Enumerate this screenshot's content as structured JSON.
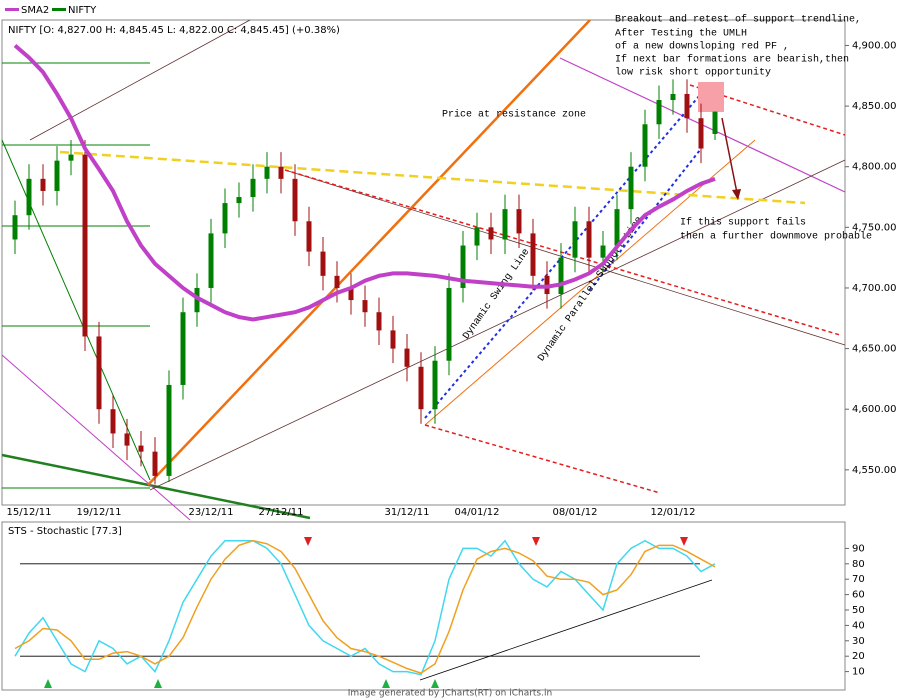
{
  "chart_data": [
    {
      "type": "candlestick",
      "name": "NIFTY",
      "color": "#008000",
      "down_color": "#a01010",
      "title": "NIFTY [O: 4,827.00  H: 4,845.45  L: 4,822.00  C: 4,845.45] (+0.38%)",
      "categories": [
        null,
        "15/12/11",
        null,
        null,
        null,
        null,
        "19/12/11",
        null,
        null,
        null,
        null,
        null,
        null,
        null,
        "23/12/11",
        null,
        null,
        null,
        null,
        "27/12/11",
        null,
        null,
        null,
        null,
        null,
        null,
        null,
        null,
        "31/12/11",
        null,
        null,
        null,
        null,
        "04/01/12",
        null,
        null,
        null,
        null,
        null,
        null,
        "08/01/12",
        null,
        null,
        null,
        null,
        null,
        null,
        "12/01/12",
        null,
        null,
        null
      ],
      "open": [
        4740,
        4760,
        4790,
        4780,
        4805,
        4810,
        4660,
        4600,
        4580,
        4570,
        4565,
        4545,
        4620,
        4680,
        4700,
        4745,
        4770,
        4775,
        4790,
        4800,
        4790,
        4755,
        4730,
        4710,
        4700,
        4690,
        4680,
        4665,
        4650,
        4635,
        4600,
        4640,
        4700,
        4735,
        4750,
        4740,
        4765,
        4745,
        4710,
        4695,
        4725,
        4755,
        4725,
        4735,
        4765,
        4800,
        4835,
        4855,
        4860,
        4840,
        4827
      ],
      "high": [
        4772,
        4802,
        4802,
        4817,
        4822,
        4822,
        4672,
        4612,
        4592,
        4582,
        4577,
        4632,
        4692,
        4712,
        4757,
        4782,
        4787,
        4802,
        4812,
        4812,
        4802,
        4767,
        4742,
        4722,
        4712,
        4702,
        4692,
        4677,
        4662,
        4647,
        4652,
        4712,
        4747,
        4762,
        4762,
        4777,
        4777,
        4757,
        4722,
        4737,
        4767,
        4767,
        4747,
        4777,
        4812,
        4847,
        4867,
        4872,
        4872,
        4852,
        4845.45
      ],
      "low": [
        4728,
        4748,
        4768,
        4768,
        4793,
        4648,
        4588,
        4568,
        4558,
        4553,
        4538,
        4540,
        4608,
        4668,
        4688,
        4733,
        4758,
        4763,
        4778,
        4778,
        4743,
        4718,
        4698,
        4688,
        4678,
        4668,
        4653,
        4638,
        4623,
        4588,
        4588,
        4628,
        4688,
        4723,
        4728,
        4728,
        4733,
        4698,
        4683,
        4683,
        4713,
        4713,
        4713,
        4723,
        4753,
        4788,
        4823,
        4843,
        4828,
        4803,
        4822
      ],
      "close": [
        4760,
        4790,
        4780,
        4805,
        4810,
        4660,
        4600,
        4580,
        4570,
        4565,
        4545,
        4620,
        4680,
        4700,
        4745,
        4770,
        4775,
        4790,
        4800,
        4790,
        4755,
        4730,
        4710,
        4700,
        4690,
        4680,
        4665,
        4650,
        4635,
        4600,
        4640,
        4700,
        4735,
        4750,
        4740,
        4765,
        4745,
        4710,
        4695,
        4725,
        4755,
        4725,
        4735,
        4765,
        4800,
        4835,
        4855,
        4860,
        4840,
        4815,
        4845.45
      ],
      "series": [
        {
          "name": "SMA2",
          "color": "#c040c8",
          "values": [
            4900,
            4890,
            4878,
            4860,
            4840,
            4815,
            4798,
            4780,
            4755,
            4735,
            4720,
            4710,
            4700,
            4692,
            4686,
            4680,
            4676,
            4674,
            4676,
            4678,
            4680,
            4684,
            4690,
            4696,
            4700,
            4706,
            4710,
            4712,
            4712,
            4711,
            4710,
            4708,
            4706,
            4705,
            4704,
            4703,
            4702,
            4701,
            4701,
            4703,
            4707,
            4712,
            4720,
            4734,
            4748,
            4760,
            4767,
            4773,
            4780,
            4786,
            4790
          ]
        }
      ],
      "ylim": [
        4521,
        4921
      ],
      "yticks": [
        {
          "value": 4550,
          "label": "4,550.00"
        },
        {
          "value": 4600,
          "label": "4,600.00"
        },
        {
          "value": 4650,
          "label": "4,650.00"
        },
        {
          "value": 4700,
          "label": "4,700.00"
        },
        {
          "value": 4750,
          "label": "4,750.00"
        },
        {
          "value": 4800,
          "label": "4,800.00"
        },
        {
          "value": 4850,
          "label": "4,850.00"
        },
        {
          "value": 4900,
          "label": "4,900.00"
        }
      ],
      "annotations": [
        "Breakout and retest of support trendline,",
        "After Testing the UMLH",
        "of a new downsloping red PF ,",
        "If next bar formations are bearish,then",
        "low risk short opportunity",
        "Price at resistance zone",
        "Dynamic Swing Line",
        "Dynamic Parallel Support Line",
        "If this support fails",
        "then a further downmove probable"
      ]
    },
    {
      "type": "line",
      "title": "STS - Stochastic [77.3]",
      "series": [
        {
          "color": "#40d8f0",
          "values": [
            20,
            35,
            45,
            30,
            15,
            10,
            30,
            25,
            15,
            20,
            10,
            30,
            55,
            70,
            85,
            95,
            95,
            95,
            90,
            80,
            60,
            40,
            30,
            25,
            20,
            25,
            15,
            10,
            10,
            8,
            30,
            70,
            90,
            90,
            85,
            95,
            80,
            70,
            65,
            75,
            70,
            60,
            50,
            80,
            90,
            95,
            90,
            90,
            85,
            75,
            80
          ]
        },
        {
          "color": "#f0a020",
          "values": [
            25,
            30,
            38,
            37,
            30,
            18,
            18,
            22,
            23,
            20,
            15,
            20,
            32,
            52,
            70,
            83,
            92,
            95,
            93,
            88,
            77,
            60,
            43,
            32,
            25,
            23,
            20,
            16,
            12,
            9,
            15,
            36,
            63,
            83,
            88,
            90,
            87,
            82,
            72,
            70,
            70,
            68,
            60,
            63,
            73,
            88,
            92,
            92,
            88,
            83,
            78
          ]
        }
      ],
      "hlines": [
        20,
        80
      ],
      "ylim": [
        0,
        100
      ],
      "yticks": [
        10,
        20,
        30,
        40,
        50,
        60,
        70,
        80,
        90
      ]
    }
  ],
  "footer": "Image generated by JCharts(RT) on iCharts.in"
}
